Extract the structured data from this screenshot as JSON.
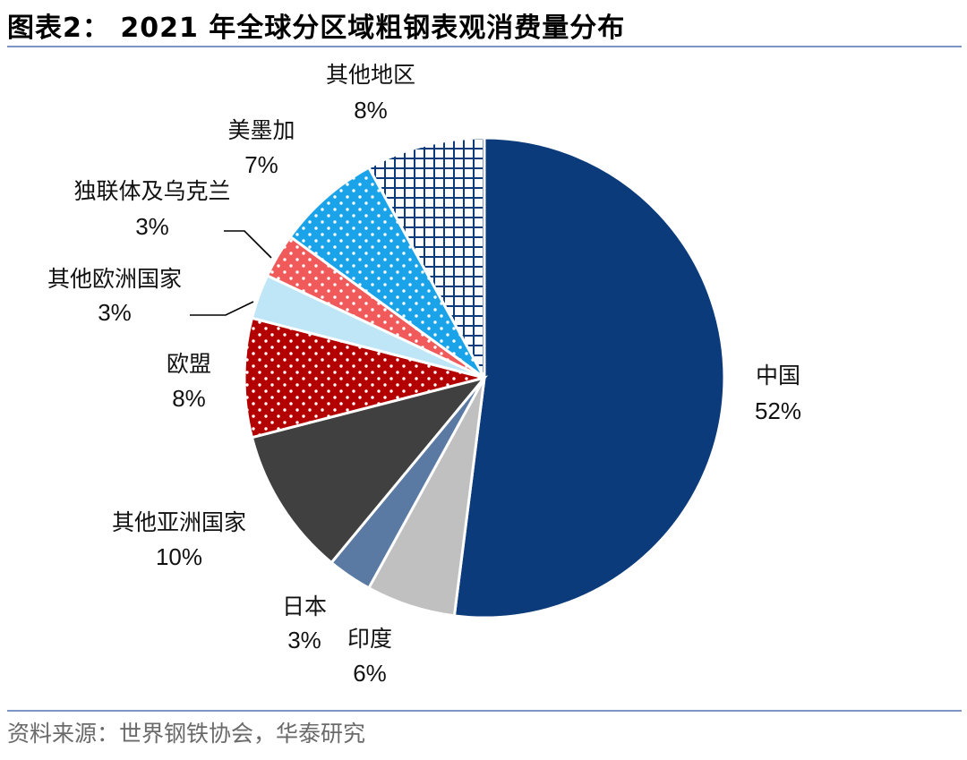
{
  "header": {
    "title": "图表2： 2021 年全球分区域粗钢表观消费量分布"
  },
  "footer": {
    "source": "资料来源：世界钢铁协会，华泰研究"
  },
  "chart_data": {
    "type": "pie",
    "title": "2021 年全球分区域粗钢表观消费量分布",
    "unit": "%",
    "slices": [
      {
        "label": "中国",
        "value": 52,
        "value_label": "52%",
        "color": "#0b3b7a",
        "pattern": "solid"
      },
      {
        "label": "印度",
        "value": 6,
        "value_label": "6%",
        "color": "#c0c0c0",
        "pattern": "solid"
      },
      {
        "label": "日本",
        "value": 3,
        "value_label": "3%",
        "color": "#5b7aa3",
        "pattern": "solid"
      },
      {
        "label": "其他亚洲国家",
        "value": 10,
        "value_label": "10%",
        "color": "#404040",
        "pattern": "solid"
      },
      {
        "label": "欧盟",
        "value": 8,
        "value_label": "8%",
        "color": "#b30000",
        "pattern": "dots"
      },
      {
        "label": "其他欧洲国家",
        "value": 3,
        "value_label": "3%",
        "color": "#bfe6f7",
        "pattern": "solid"
      },
      {
        "label": "独联体及乌克兰",
        "value": 3,
        "value_label": "3%",
        "color": "#f05a5a",
        "pattern": "dots"
      },
      {
        "label": "美墨加",
        "value": 7,
        "value_label": "7%",
        "color": "#1aa3e8",
        "pattern": "dots"
      },
      {
        "label": "其他地区",
        "value": 8,
        "value_label": "8%",
        "color": "#0b3b7a",
        "pattern": "grid"
      }
    ]
  }
}
